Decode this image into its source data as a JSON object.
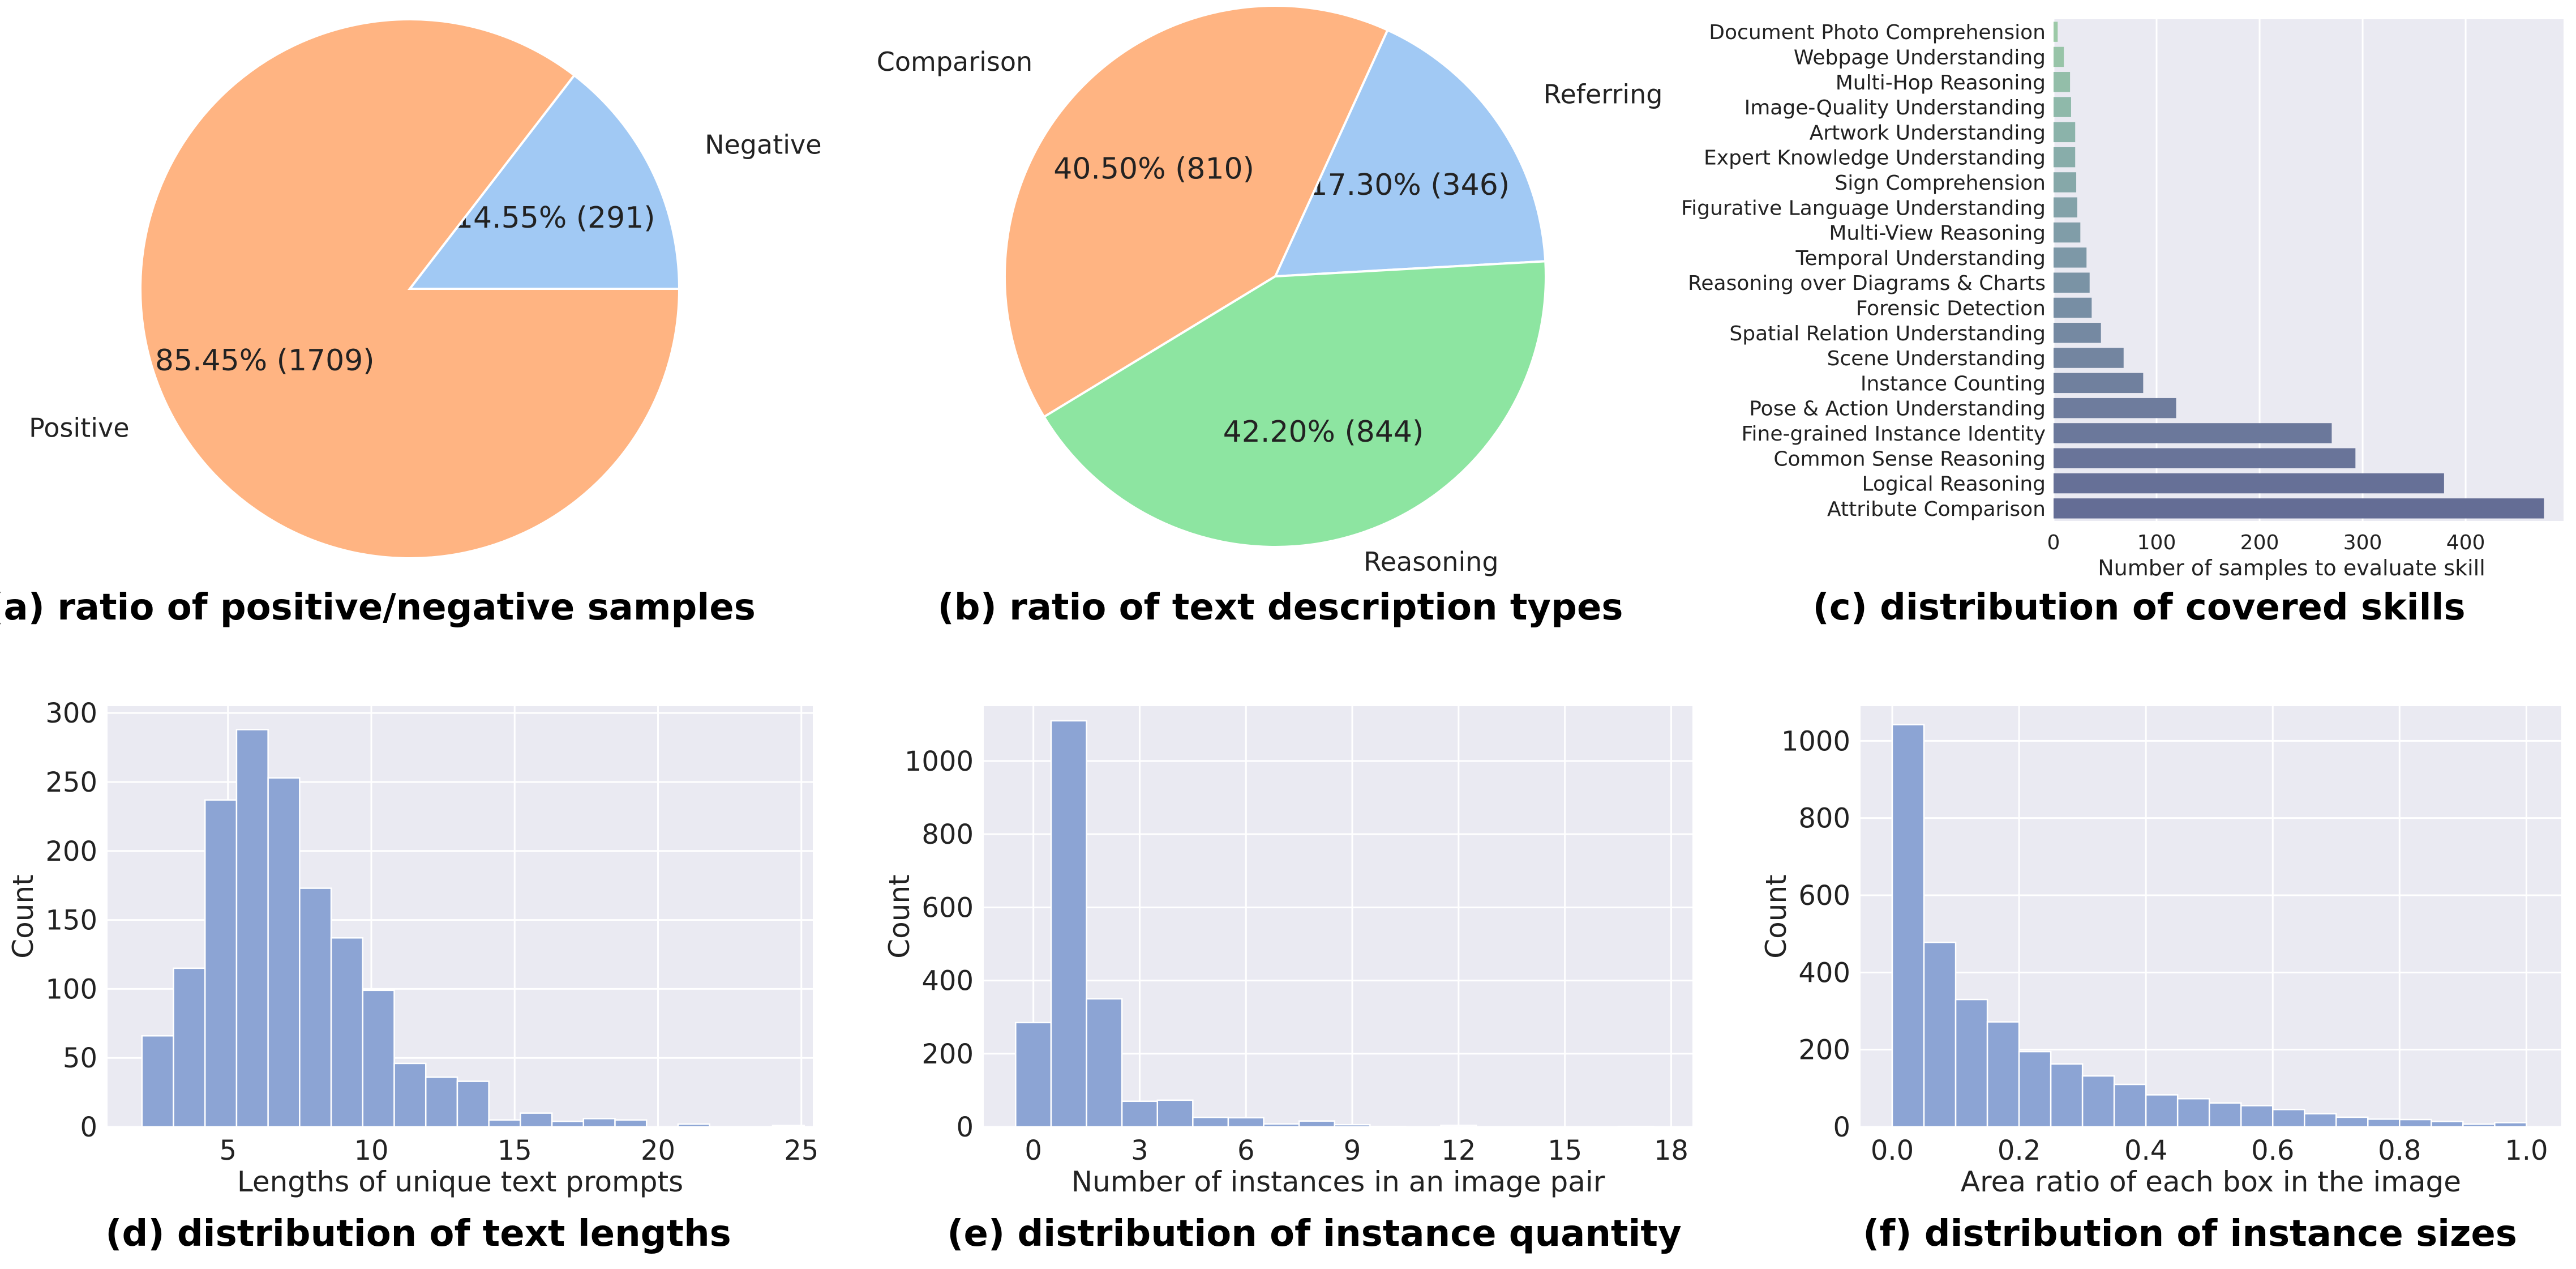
{
  "panels": {
    "a": {
      "caption": "(a) ratio of positive/negative samples"
    },
    "b": {
      "caption": "(b) ratio of text description types"
    },
    "c": {
      "caption": "(c) distribution of covered skills"
    },
    "d": {
      "caption": "(d) distribution of text lengths"
    },
    "e": {
      "caption": "(e) distribution of instance quantity"
    },
    "f": {
      "caption": "(f) distribution of instance sizes"
    }
  },
  "chart_data": [
    {
      "id": "a",
      "type": "pie",
      "title": "(a) ratio of positive/negative samples",
      "slices": [
        {
          "label": "Negative",
          "value": 291,
          "pct": "14.55%",
          "count": "(291)",
          "color": "#a1c9f4"
        },
        {
          "label": "Positive",
          "value": 1709,
          "pct": "85.45%",
          "count": "(1709)",
          "color": "#ffb482"
        }
      ]
    },
    {
      "id": "b",
      "type": "pie",
      "title": "(b) ratio of text description types",
      "slices": [
        {
          "label": "Referring",
          "value": 346,
          "pct": "17.30%",
          "count": "(346)",
          "color": "#a1c9f4"
        },
        {
          "label": "Comparison",
          "value": 810,
          "pct": "40.50%",
          "count": "(810)",
          "color": "#ffb482"
        },
        {
          "label": "Reasoning",
          "value": 844,
          "pct": "42.20%",
          "count": "(844)",
          "color": "#8de5a1"
        }
      ]
    },
    {
      "id": "c",
      "type": "bar",
      "orientation": "horizontal",
      "title": "(c) distribution of covered skills",
      "xlabel": "Number of samples to evaluate skill",
      "xlim": [
        0,
        495
      ],
      "xticks": [
        0,
        100,
        200,
        300,
        400
      ],
      "categories": [
        "Document Photo Comprehension",
        "Webpage Understanding",
        "Multi-Hop Reasoning",
        "Image-Quality Understanding",
        "Artwork Understanding",
        "Expert Knowledge Understanding",
        "Sign Comprehension",
        "Figurative Language Understanding",
        "Multi-View Reasoning",
        "Temporal Understanding",
        "Reasoning over Diagrams & Charts",
        "Forensic Detection",
        "Spatial Relation Understanding",
        "Scene Understanding",
        "Instance Counting",
        "Pose & Action Understanding",
        "Fine-grained Instance Identity",
        "Common Sense Reasoning",
        "Logical Reasoning",
        "Attribute Comparison"
      ],
      "values": [
        4,
        10,
        16,
        17,
        21,
        21,
        22,
        23,
        26,
        32,
        35,
        37,
        46,
        68,
        87,
        119,
        270,
        293,
        379,
        476
      ],
      "colors": [
        "#9cc9a7",
        "#98c4a8",
        "#93bea9",
        "#8fb9aa",
        "#8bb3aa",
        "#88adaa",
        "#86a8a9",
        "#83a2a9",
        "#809da8",
        "#7d98a7",
        "#7a93a5",
        "#778ea4",
        "#7589a2",
        "#7385a0",
        "#70809e",
        "#6e7c9d",
        "#6b789b",
        "#697499",
        "#667097",
        "#646d95"
      ]
    },
    {
      "id": "d",
      "type": "histogram",
      "title": "(d) distribution of text lengths",
      "xlabel": "Lengths of unique text prompts",
      "ylabel": "Count",
      "xlim": [
        0.8,
        25.4
      ],
      "ylim": [
        0,
        305
      ],
      "xticks": [
        5,
        10,
        15,
        20,
        25
      ],
      "yticks": [
        0,
        50,
        100,
        150,
        200,
        250,
        300
      ],
      "bin_start": 2,
      "bin_width": 1.1,
      "values": [
        66,
        115,
        237,
        288,
        253,
        173,
        137,
        99,
        46,
        36,
        33,
        5,
        10,
        4,
        6,
        5,
        0,
        2,
        0,
        0,
        1
      ],
      "color": "#8ca4d4"
    },
    {
      "id": "e",
      "type": "histogram",
      "title": "(e) distribution of instance quantity",
      "xlabel": "Number of instances in an image pair",
      "ylabel": "Count",
      "xlim": [
        -1.4,
        18.6
      ],
      "ylim": [
        0,
        1150
      ],
      "xticks": [
        0,
        3,
        6,
        9,
        12,
        15,
        18
      ],
      "yticks": [
        0,
        200,
        400,
        600,
        800,
        1000
      ],
      "bin_start": -0.5,
      "bin_width": 1,
      "values": [
        285,
        1110,
        350,
        70,
        73,
        26,
        25,
        8,
        16,
        6,
        1,
        0,
        4,
        0,
        0,
        0,
        0,
        1
      ],
      "color": "#8ca4d4"
    },
    {
      "id": "f",
      "type": "histogram",
      "title": "(f) distribution of instance sizes",
      "xlabel": "Area ratio of each box in the image",
      "ylabel": "Count",
      "xlim": [
        -0.05,
        1.055
      ],
      "ylim": [
        0,
        1090
      ],
      "xticks": [
        0.0,
        0.2,
        0.4,
        0.6,
        0.8,
        1.0
      ],
      "yticks": [
        0,
        200,
        400,
        600,
        800,
        1000
      ],
      "bin_start": 0,
      "bin_width": 0.05,
      "values": [
        1042,
        478,
        330,
        272,
        195,
        163,
        132,
        110,
        83,
        73,
        62,
        55,
        45,
        34,
        25,
        20,
        19,
        14,
        7,
        11
      ],
      "color": "#8ca4d4"
    }
  ]
}
